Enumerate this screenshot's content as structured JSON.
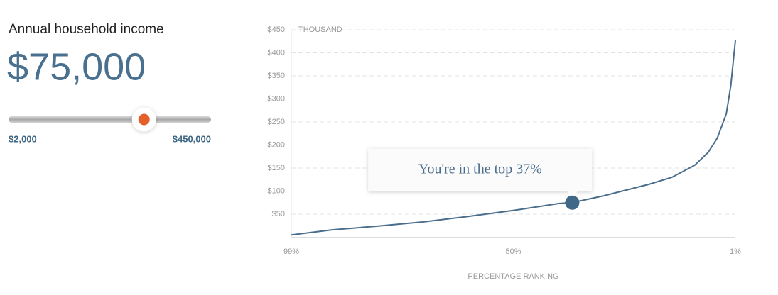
{
  "slider": {
    "label": "Annual household income",
    "value": 75000,
    "value_label": "$75,000",
    "min": 2000,
    "min_label": "$2,000",
    "max": 450000,
    "max_label": "$450,000",
    "scale": "log"
  },
  "chart_data": {
    "type": "line",
    "y_unit": "THOUSAND",
    "x_label": "PERCENTAGE RANKING",
    "x": [
      99,
      90,
      80,
      70,
      60,
      50,
      40,
      37,
      30,
      20,
      15,
      10,
      7,
      5,
      3,
      2,
      1
    ],
    "series": [
      {
        "name": "Household income",
        "color": "#4a6d8c",
        "values": [
          5,
          16,
          24,
          33,
          45,
          58,
          73,
          75,
          90,
          115,
          130,
          156,
          184,
          215,
          268,
          330,
          427
        ]
      }
    ],
    "xlim": [
      99,
      1
    ],
    "xticks": [
      {
        "value": 99,
        "label": "99%"
      },
      {
        "value": 50,
        "label": "50%"
      },
      {
        "value": 1,
        "label": "1%"
      }
    ],
    "ylim": [
      0,
      450
    ],
    "yticks": [
      {
        "value": 50,
        "label": "$50"
      },
      {
        "value": 100,
        "label": "$100"
      },
      {
        "value": 150,
        "label": "$150"
      },
      {
        "value": 200,
        "label": "$200"
      },
      {
        "value": 250,
        "label": "$250"
      },
      {
        "value": 300,
        "label": "$300"
      },
      {
        "value": 350,
        "label": "$350"
      },
      {
        "value": 400,
        "label": "$400"
      },
      {
        "value": 450,
        "label": "$450"
      }
    ],
    "grid": true,
    "marker": {
      "x": 37,
      "y": 75,
      "color": "#3f6788"
    },
    "annotation": "You're in the top 37%"
  }
}
